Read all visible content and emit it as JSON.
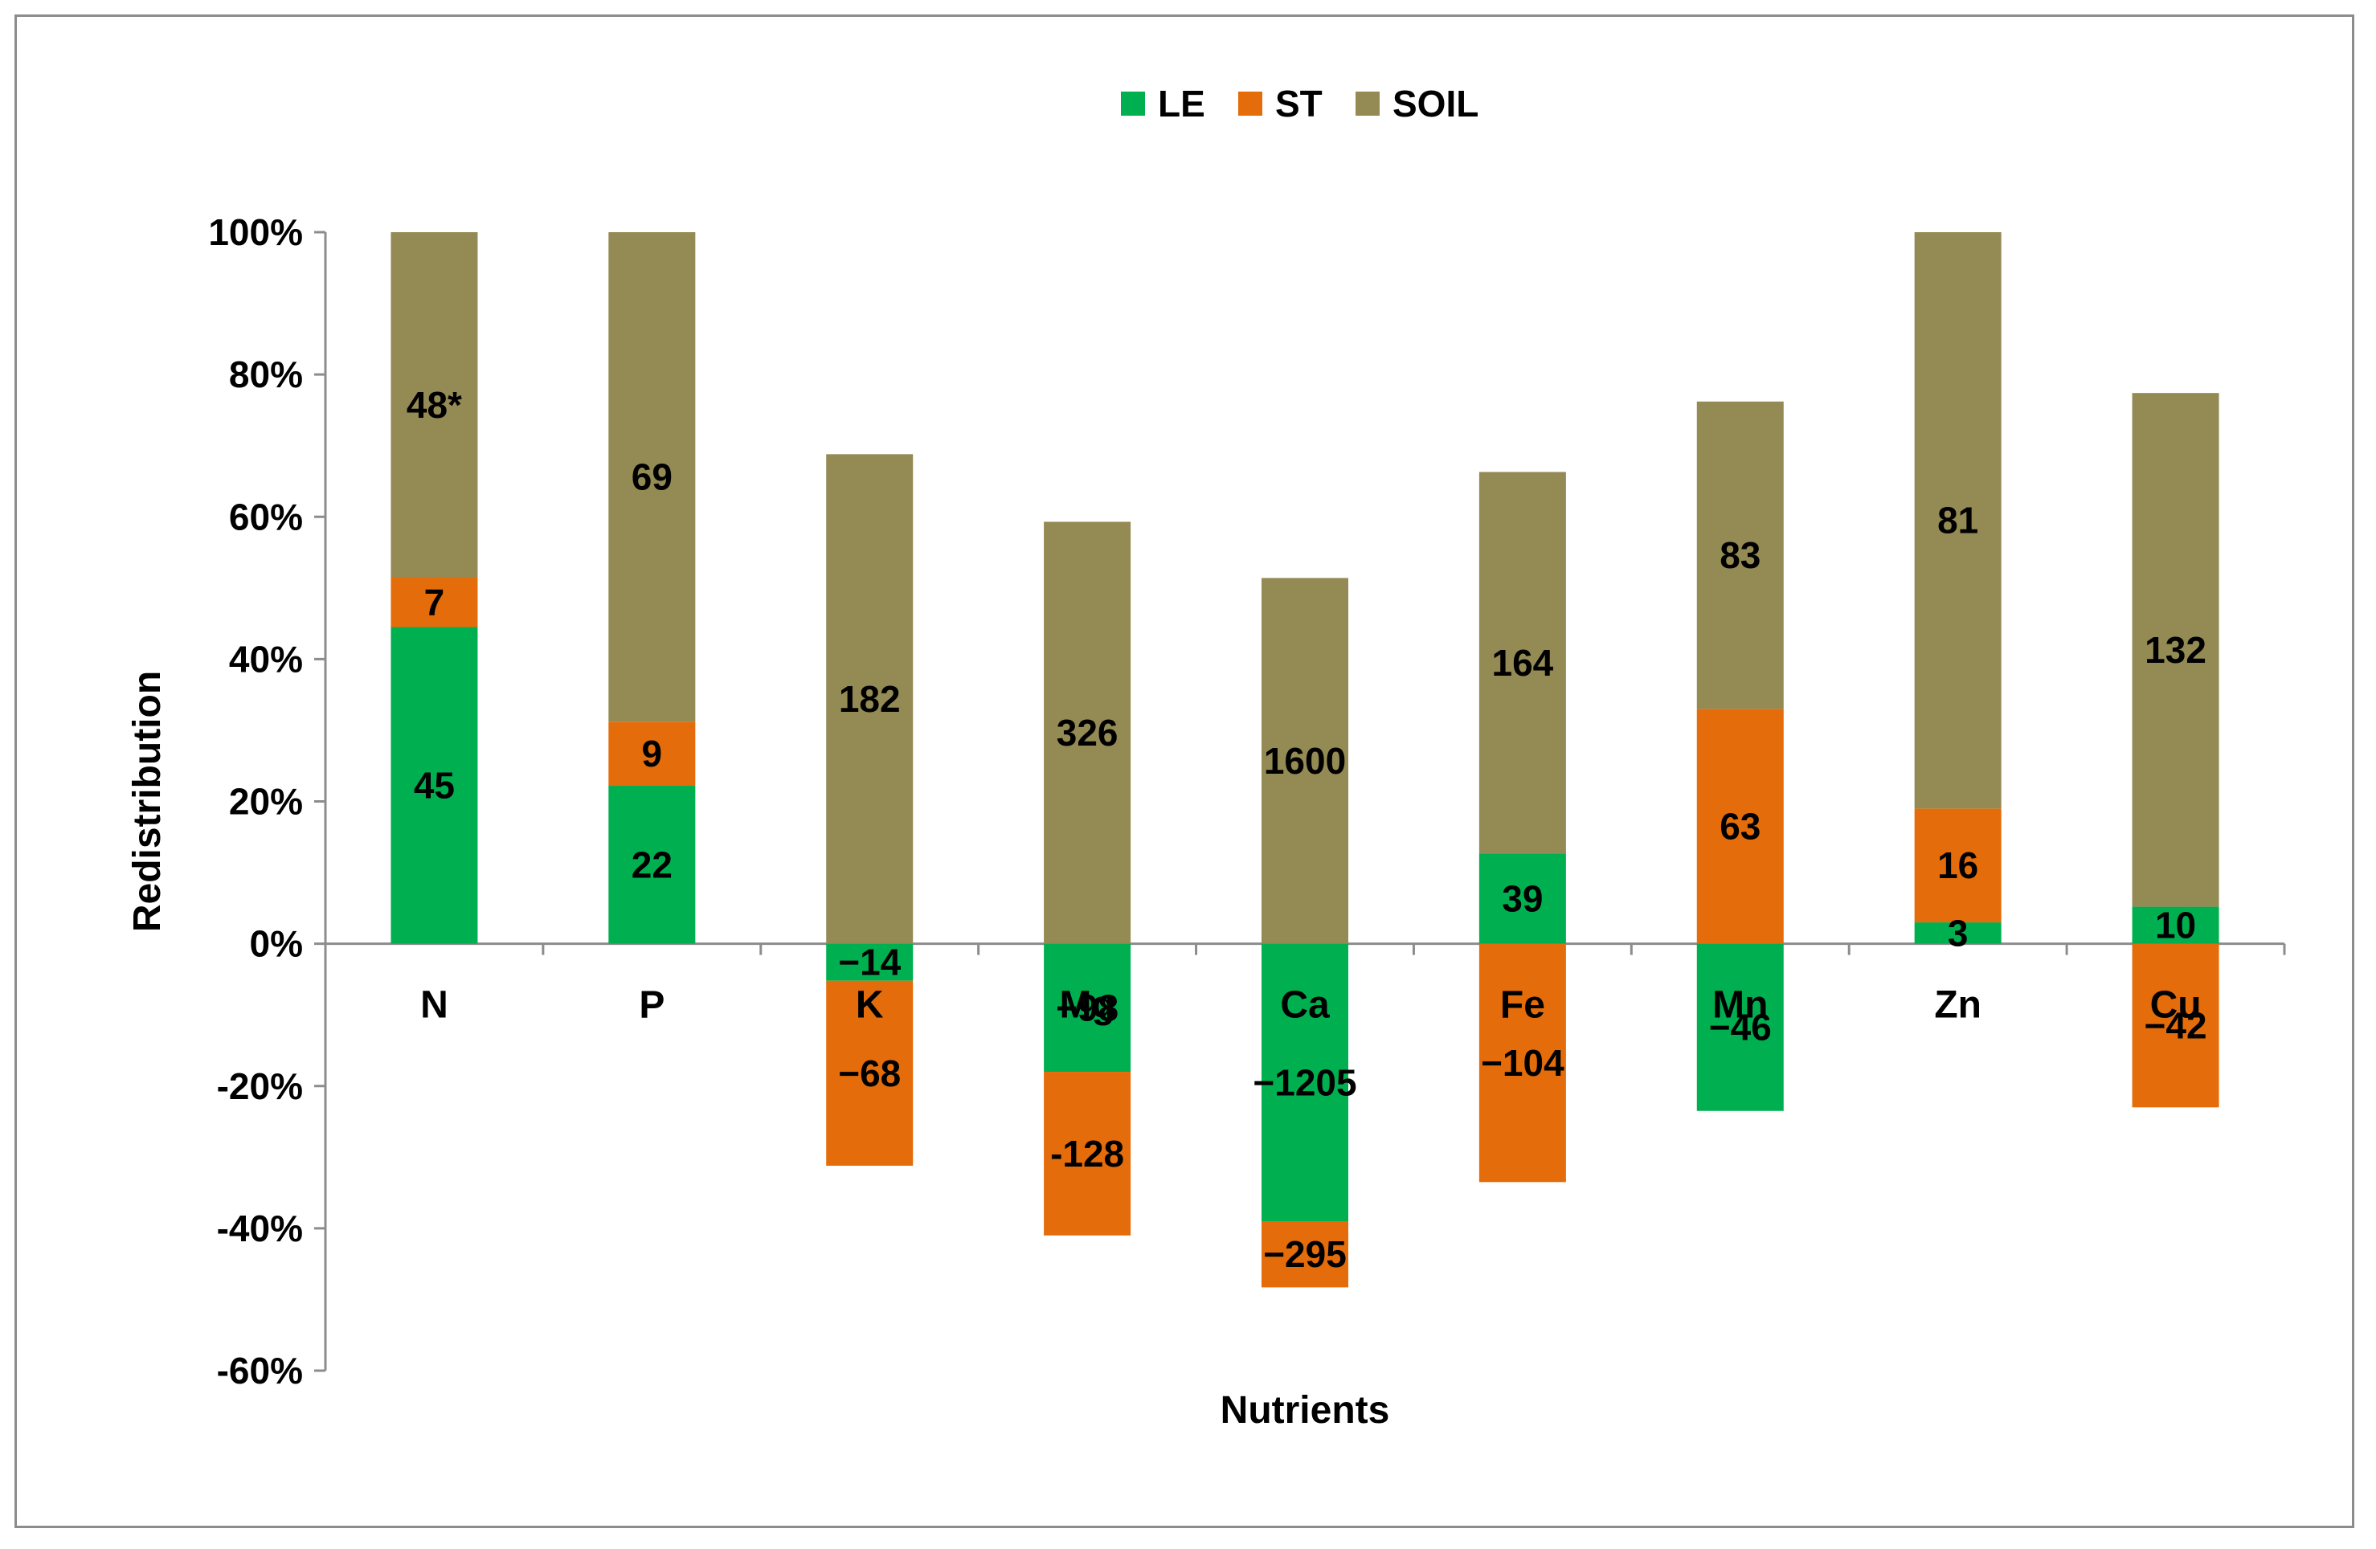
{
  "chart_data": {
    "type": "bar",
    "stacked": true,
    "xlabel": "Nutrients",
    "ylabel": "Redistribution",
    "ylim": [
      -60,
      100
    ],
    "y_ticks": [
      {
        "value": 100,
        "label": "100%"
      },
      {
        "value": 80,
        "label": "80%"
      },
      {
        "value": 60,
        "label": "60%"
      },
      {
        "value": 40,
        "label": "40%"
      },
      {
        "value": 20,
        "label": "20%"
      },
      {
        "value": 0,
        "label": "0%"
      },
      {
        "value": -20,
        "label": "-20%"
      },
      {
        "value": -40,
        "label": "-40%"
      },
      {
        "value": -60,
        "label": "-60%"
      }
    ],
    "categories": [
      "N",
      "P",
      "K",
      "Mg",
      "Ca",
      "Fe",
      "Mn",
      "Zn",
      "Cu"
    ],
    "legend": {
      "position": "top"
    },
    "series": [
      {
        "name": "LE",
        "color": "#00b050",
        "values": [
          44.5,
          22.2,
          -5.2,
          -18.0,
          -39.0,
          12.7,
          -23.5,
          3.0,
          5.2
        ],
        "labels": [
          "45",
          "22",
          "−14",
          "−98",
          "−1205",
          "39",
          "−46",
          "3",
          "10"
        ]
      },
      {
        "name": "ST",
        "color": "#e46c0a",
        "values": [
          7.0,
          9.0,
          -26.0,
          -23.0,
          -9.3,
          -33.5,
          33.0,
          16.0,
          -23.0
        ],
        "labels": [
          "7",
          "9",
          "−68",
          "-128",
          "−295",
          "−104",
          "63",
          "16",
          "−42"
        ]
      },
      {
        "name": "SOIL",
        "color": "#948a54",
        "values": [
          48.5,
          68.8,
          68.8,
          59.3,
          51.4,
          53.6,
          43.2,
          81.0,
          72.2
        ],
        "labels": [
          "48*",
          "69",
          "182",
          "326",
          "1600",
          "164",
          "83",
          "81",
          "132"
        ]
      }
    ]
  }
}
